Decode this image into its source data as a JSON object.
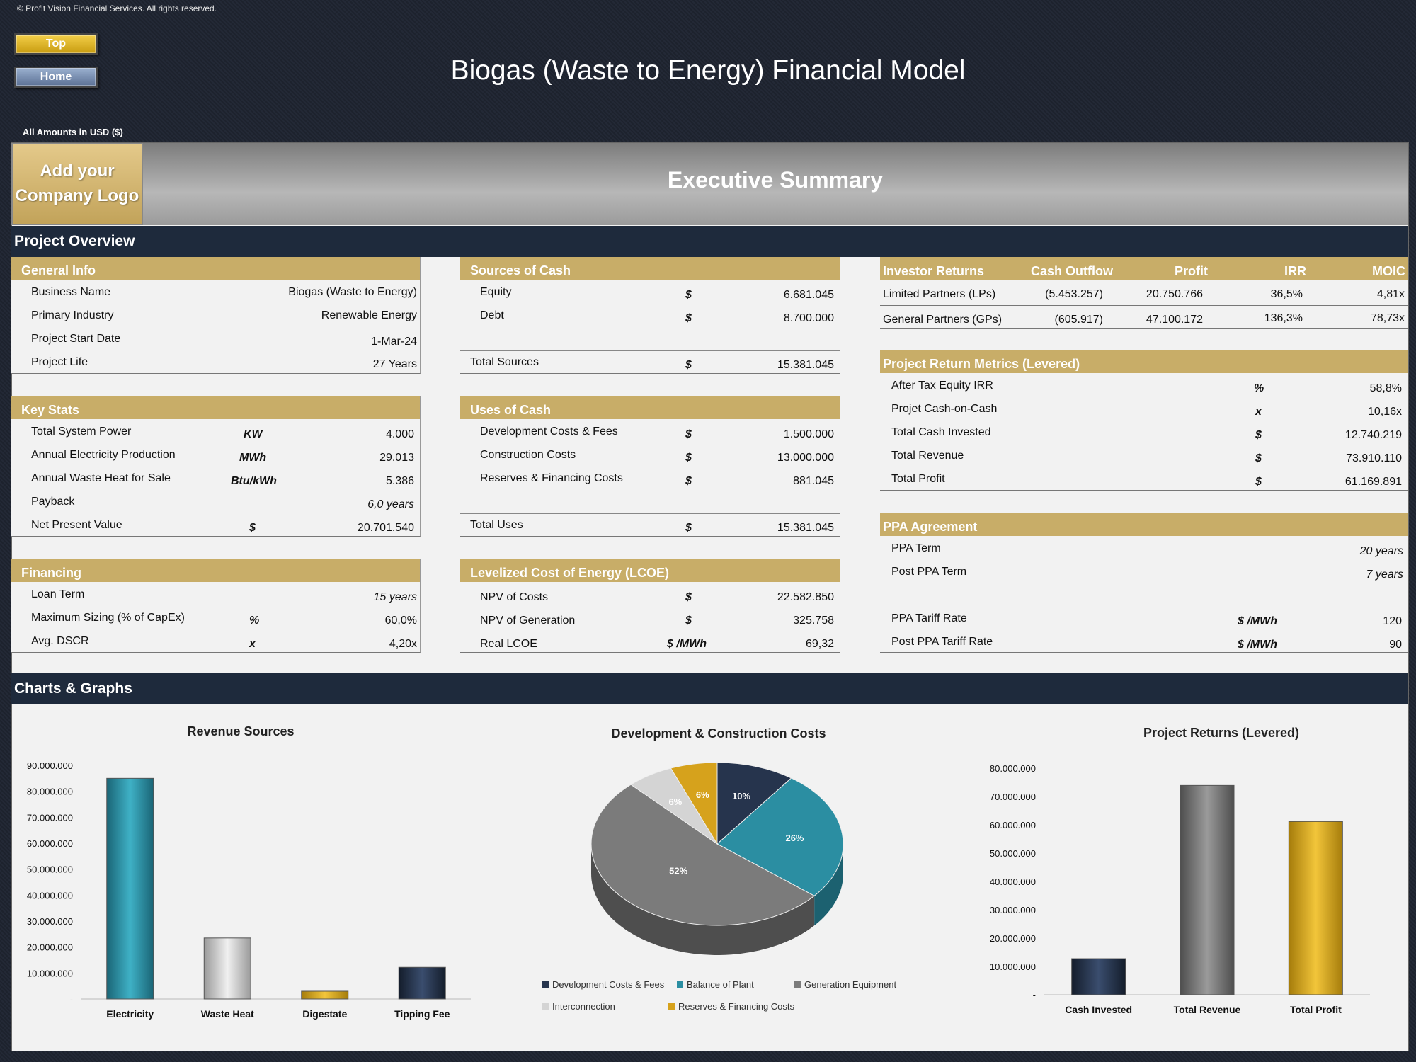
{
  "copyright": "© Profit Vision Financial Services. All rights reserved.",
  "nav": {
    "top": "Top",
    "home": "Home"
  },
  "title": "Biogas (Waste to Energy) Financial Model",
  "amounts_note": "All Amounts in  USD ($)",
  "logo_text_1": "Add your",
  "logo_text_2": "Company Logo",
  "exec_title": "Executive Summary",
  "project_overview": "Project Overview",
  "general_info": {
    "header": "General Info",
    "rows": [
      {
        "label": "Business Name",
        "value": "Biogas (Waste to Energy)"
      },
      {
        "label": "Primary Industry",
        "value": "Renewable Energy"
      },
      {
        "label": "Project Start Date",
        "value": "1-Mar-24"
      },
      {
        "label": "Project Life",
        "value": "27 Years"
      }
    ]
  },
  "key_stats": {
    "header": "Key Stats",
    "rows": [
      {
        "label": "Total System Power",
        "unit": "KW",
        "value": "4.000"
      },
      {
        "label": "Annual Electricity Production",
        "unit": "MWh",
        "value": "29.013"
      },
      {
        "label": "Annual Waste Heat for Sale",
        "unit": "Btu/kWh",
        "value": "5.386"
      },
      {
        "label": "Payback",
        "unit": "",
        "value": "6,0 years"
      },
      {
        "label": "Net Present Value",
        "unit": "$",
        "value": "20.701.540"
      }
    ]
  },
  "financing": {
    "header": "Financing",
    "rows": [
      {
        "label": "Loan Term",
        "unit": "",
        "value": "15 years"
      },
      {
        "label": "Maximum Sizing (% of CapEx)",
        "unit": "%",
        "value": "60,0%"
      },
      {
        "label": "Avg. DSCR",
        "unit": "x",
        "value": "4,20x"
      }
    ]
  },
  "sources": {
    "header": "Sources of Cash",
    "rows": [
      {
        "label": "Equity",
        "unit": "$",
        "value": "6.681.045"
      },
      {
        "label": "Debt",
        "unit": "$",
        "value": "8.700.000"
      }
    ],
    "total": {
      "label": "Total Sources",
      "unit": "$",
      "value": "15.381.045"
    }
  },
  "uses": {
    "header": "Uses of Cash",
    "rows": [
      {
        "label": "Development Costs & Fees",
        "unit": "$",
        "value": "1.500.000"
      },
      {
        "label": "Construction Costs",
        "unit": "$",
        "value": "13.000.000"
      },
      {
        "label": "Reserves & Financing Costs",
        "unit": "$",
        "value": "881.045"
      }
    ],
    "total": {
      "label": "Total Uses",
      "unit": "$",
      "value": "15.381.045"
    }
  },
  "lcoe": {
    "header": "Levelized Cost of Energy (LCOE)",
    "rows": [
      {
        "label": "NPV of Costs",
        "unit": "$",
        "value": "22.582.850"
      },
      {
        "label": "NPV of Generation",
        "unit": "$",
        "value": "325.758"
      },
      {
        "label": "Real LCOE",
        "unit": "$ /MWh",
        "value": "69,32"
      }
    ]
  },
  "investor_returns": {
    "headers": [
      "Investor Returns",
      "Cash Outflow",
      "Profit",
      "IRR",
      "MOIC"
    ],
    "rows": [
      {
        "label": "Limited Partners (LPs)",
        "outflow": "(5.453.257)",
        "profit": "20.750.766",
        "irr": "36,5%",
        "moic": "4,81x"
      },
      {
        "label": "General Partners (GPs)",
        "outflow": "(605.917)",
        "profit": "47.100.172",
        "irr": "136,3%",
        "moic": "78,73x"
      }
    ]
  },
  "return_metrics": {
    "header": "Project Return Metrics (Levered)",
    "rows": [
      {
        "label": "After Tax Equity IRR",
        "unit": "%",
        "value": "58,8%"
      },
      {
        "label": "Projet Cash-on-Cash",
        "unit": "x",
        "value": "10,16x"
      },
      {
        "label": "Total Cash Invested",
        "unit": "$",
        "value": "12.740.219"
      },
      {
        "label": "Total Revenue",
        "unit": "$",
        "value": "73.910.110"
      },
      {
        "label": "Total Profit",
        "unit": "$",
        "value": "61.169.891"
      }
    ]
  },
  "ppa": {
    "header": "PPA Agreement",
    "rows": [
      {
        "label": "PPA Term",
        "unit": "",
        "value": "20 years"
      },
      {
        "label": "Post PPA Term",
        "unit": "",
        "value": "7 years"
      },
      {
        "label": "PPA Tariff Rate",
        "unit": "$ /MWh",
        "value": "120"
      },
      {
        "label": "Post PPA Tariff Rate",
        "unit": "$ /MWh",
        "value": "90"
      }
    ]
  },
  "charts_band": "Charts & Graphs",
  "colors": {
    "navy": "#1e2a3c",
    "gold": "#c8ad68",
    "teal": "#2a8fa3",
    "grey": "#7a7a7a",
    "light_grey": "#c8c8c8",
    "amber": "#d9a520"
  },
  "chart_data": [
    {
      "type": "bar",
      "title": "Revenue Sources",
      "categories": [
        "Electricity",
        "Waste Heat",
        "Digestate",
        "Tipping Fee"
      ],
      "values": [
        85000000,
        23500000,
        3000000,
        12200000
      ],
      "ylim": [
        0,
        90000000
      ],
      "yticks": [
        "-",
        "10.000.000",
        "20.000.000",
        "30.000.000",
        "40.000.000",
        "50.000.000",
        "60.000.000",
        "70.000.000",
        "80.000.000",
        "90.000.000"
      ]
    },
    {
      "type": "pie",
      "title": "Development & Construction Costs",
      "series": [
        {
          "name": "Development Costs & Fees",
          "value": 10,
          "label": "10%"
        },
        {
          "name": "Balance of Plant",
          "value": 26,
          "label": "26%"
        },
        {
          "name": "Generation Equipment",
          "value": 52,
          "label": "52%"
        },
        {
          "name": "Interconnection",
          "value": 6,
          "label": "6%"
        },
        {
          "name": "Reserves & Financing Costs",
          "value": 6,
          "label": "6%"
        }
      ]
    },
    {
      "type": "bar",
      "title": "Project Returns (Levered)",
      "categories": [
        "Cash Invested",
        "Total Revenue",
        "Total Profit"
      ],
      "values": [
        12740219,
        73910110,
        61169891
      ],
      "ylim": [
        0,
        80000000
      ],
      "yticks": [
        "-",
        "10.000.000",
        "20.000.000",
        "30.000.000",
        "40.000.000",
        "50.000.000",
        "60.000.000",
        "70.000.000",
        "80.000.000"
      ]
    }
  ]
}
